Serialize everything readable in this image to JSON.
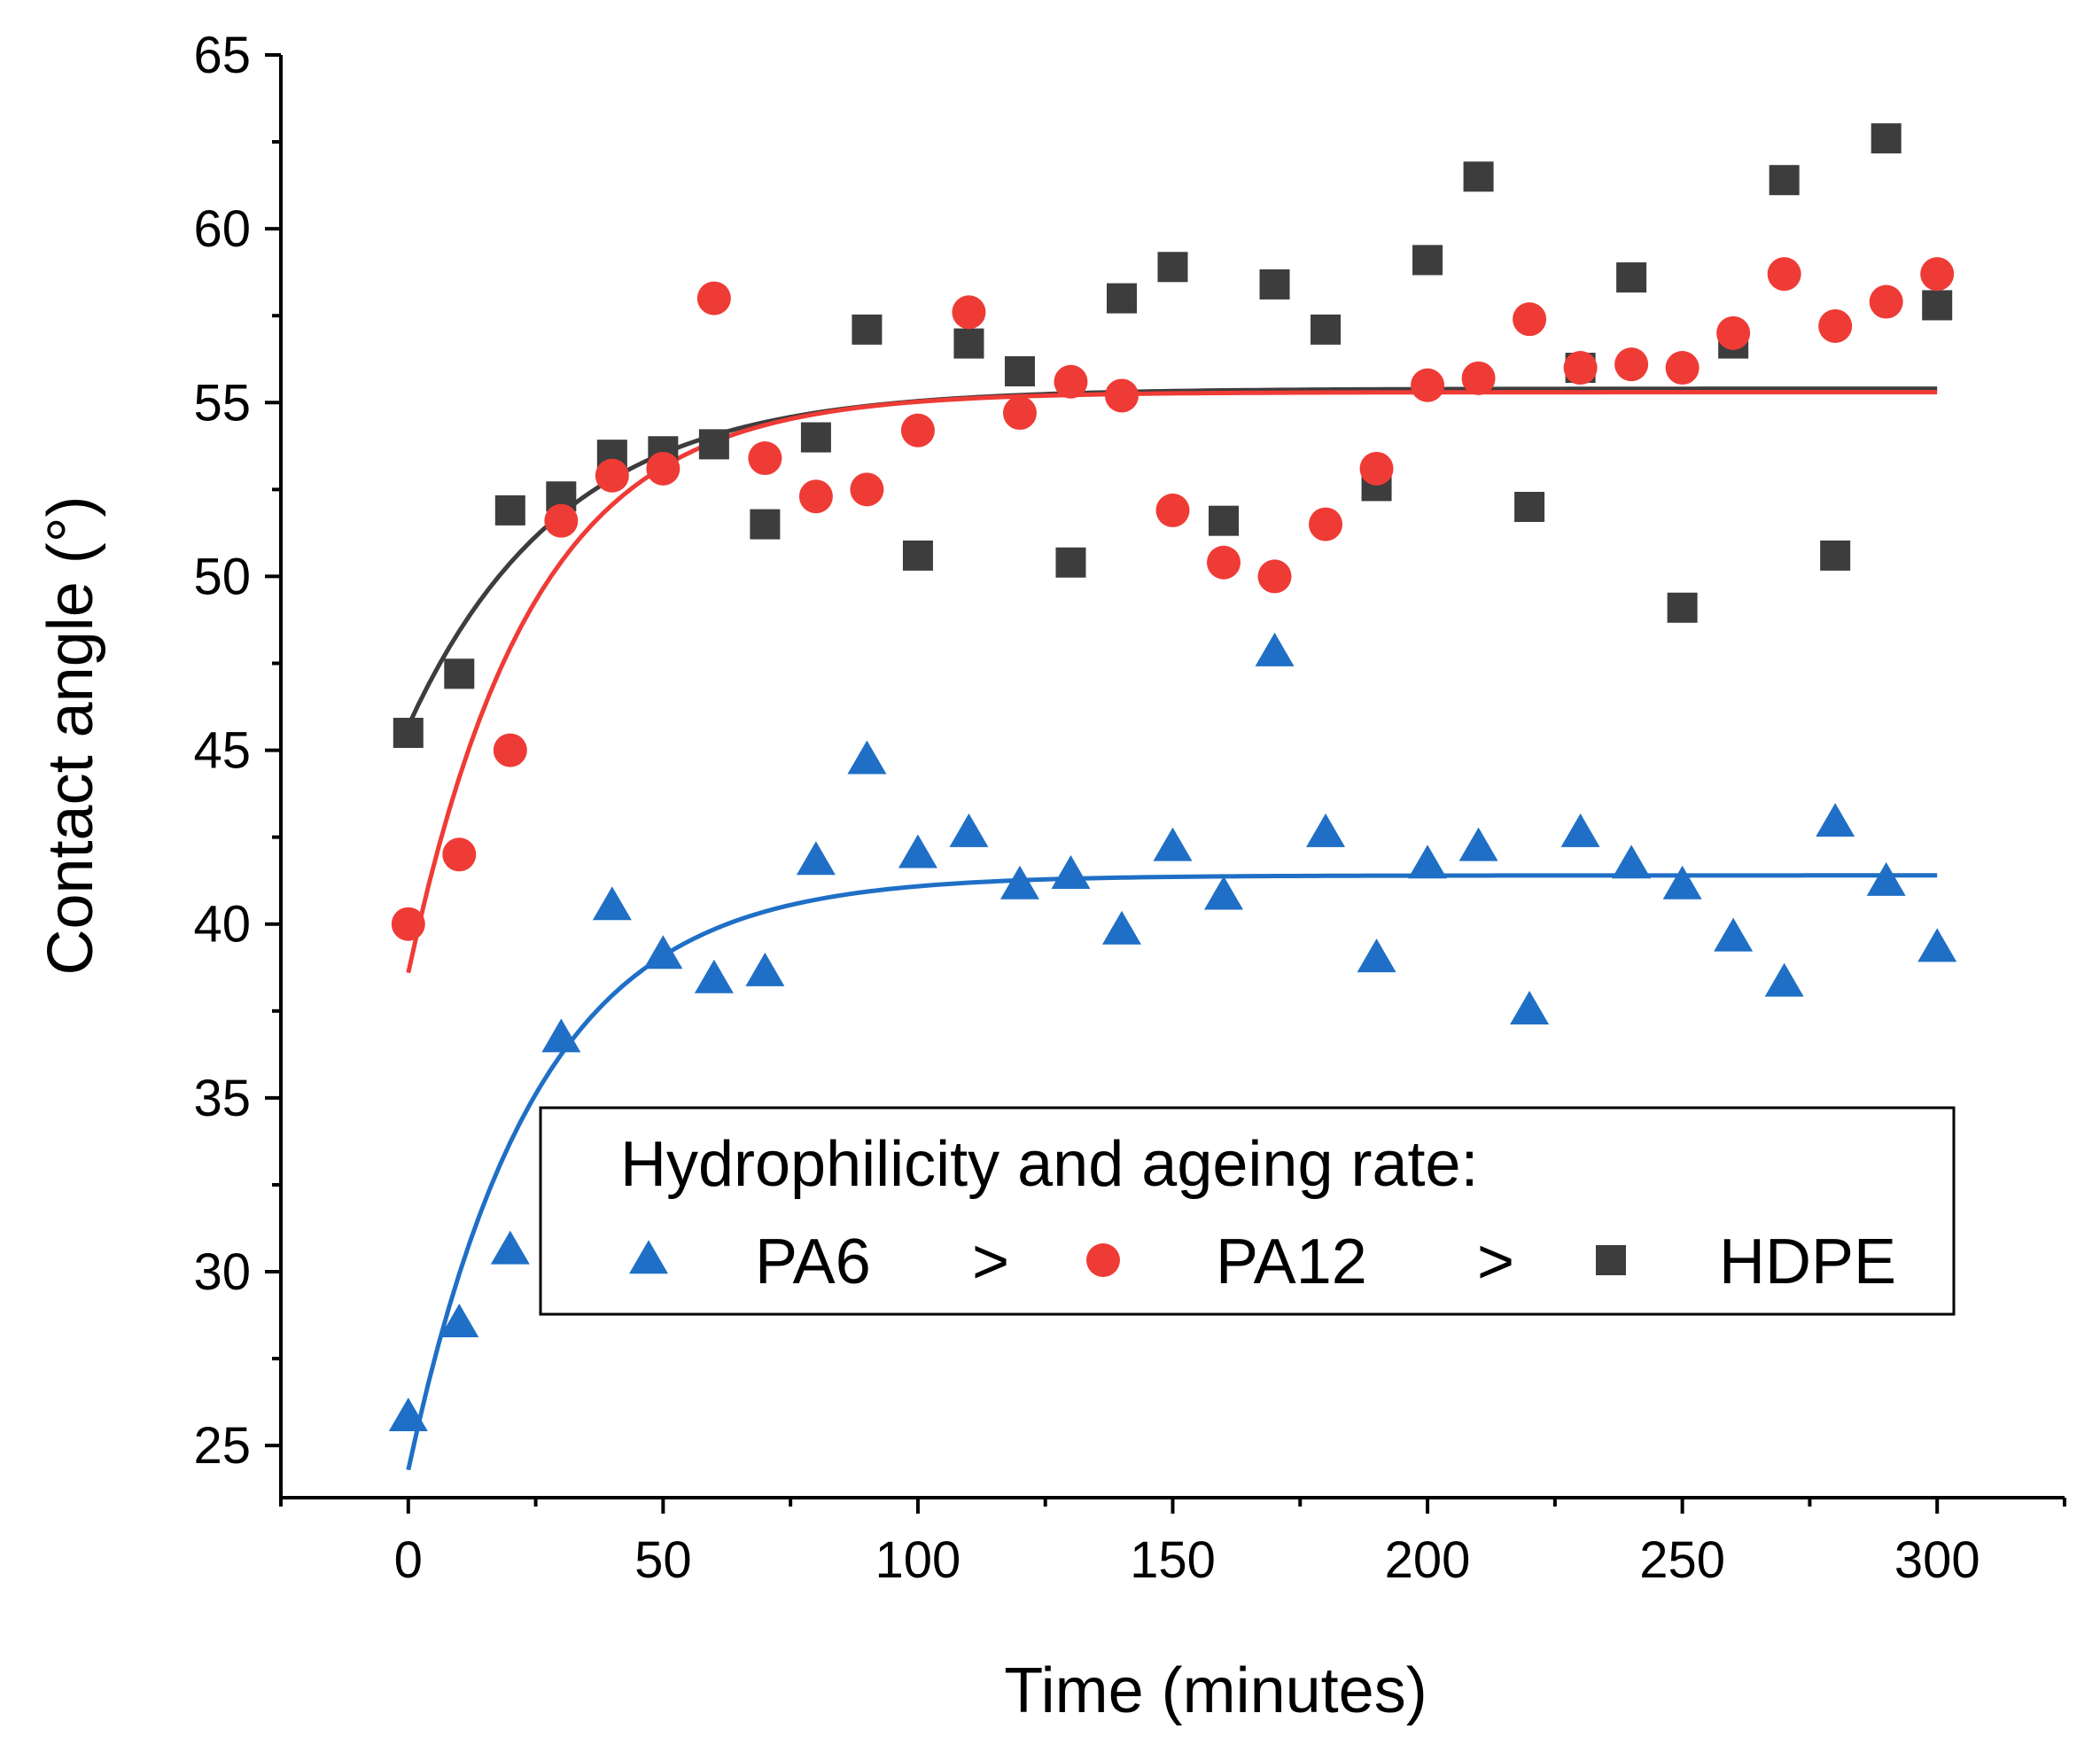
{
  "chart_data": {
    "type": "scatter",
    "xlabel": "Time (minutes)",
    "ylabel": "Contact angle (°)",
    "xlim": [
      -25,
      325
    ],
    "ylim": [
      23.5,
      65
    ],
    "xticks": [
      0,
      50,
      100,
      150,
      200,
      250,
      300
    ],
    "yticks": [
      25,
      30,
      35,
      40,
      45,
      50,
      55,
      60,
      65
    ],
    "grid": false,
    "legend": {
      "title": "Hydrophilicity and ageing rate:",
      "placement": "bottom-right",
      "separator": ">",
      "entries": [
        "PA6",
        "PA12",
        "HDPE"
      ]
    },
    "series": [
      {
        "name": "HDPE",
        "marker": "square",
        "color": "#3d3d3d",
        "x": [
          0,
          10,
          20,
          30,
          40,
          50,
          60,
          70,
          80,
          90,
          100,
          110,
          120,
          130,
          140,
          150,
          160,
          170,
          180,
          190,
          200,
          210,
          220,
          230,
          240,
          250,
          260,
          270,
          280,
          290,
          300
        ],
        "y": [
          45.5,
          47.2,
          51.9,
          52.3,
          53.5,
          53.6,
          53.8,
          51.5,
          54.0,
          57.1,
          50.6,
          56.7,
          55.9,
          50.4,
          58.0,
          58.9,
          51.6,
          58.4,
          57.1,
          52.6,
          59.1,
          61.5,
          52.0,
          56.0,
          58.6,
          49.1,
          56.7,
          61.4,
          50.6,
          62.6,
          57.8
        ],
        "fit": {
          "y0": 45.7,
          "plateau": 55.4,
          "rate": 0.033
        }
      },
      {
        "name": "PA12",
        "marker": "circle",
        "color": "#ef3b36",
        "x": [
          0,
          10,
          20,
          30,
          40,
          50,
          60,
          70,
          80,
          90,
          100,
          110,
          120,
          130,
          140,
          150,
          160,
          170,
          180,
          190,
          200,
          210,
          220,
          230,
          240,
          250,
          260,
          270,
          280,
          290,
          300
        ],
        "y": [
          40.0,
          42.0,
          45.0,
          51.6,
          52.9,
          53.1,
          58.0,
          53.4,
          52.3,
          52.5,
          54.2,
          57.6,
          54.7,
          55.6,
          55.2,
          51.9,
          50.4,
          50.0,
          51.5,
          53.1,
          55.5,
          55.7,
          57.4,
          56.0,
          56.1,
          56.0,
          57.0,
          58.7,
          57.2,
          57.9,
          58.7
        ],
        "fit": {
          "y0": 38.6,
          "plateau": 55.3,
          "rate": 0.041
        }
      },
      {
        "name": "PA6",
        "marker": "triangle",
        "color": "#1f6fc6",
        "x": [
          0,
          10,
          20,
          30,
          40,
          50,
          60,
          70,
          80,
          90,
          100,
          110,
          120,
          130,
          140,
          150,
          160,
          170,
          180,
          190,
          200,
          210,
          220,
          230,
          240,
          250,
          260,
          270,
          280,
          290,
          300
        ],
        "y": [
          25.8,
          28.5,
          30.6,
          36.7,
          40.5,
          39.1,
          38.4,
          38.6,
          41.8,
          44.7,
          42.0,
          42.6,
          41.1,
          41.4,
          39.8,
          42.2,
          40.8,
          47.8,
          42.6,
          39.0,
          41.7,
          42.2,
          37.5,
          42.6,
          41.7,
          41.1,
          39.6,
          38.3,
          42.9,
          41.2,
          39.3
        ],
        "fit": {
          "y0": 24.3,
          "plateau": 41.4,
          "rate": 0.04
        }
      }
    ]
  }
}
